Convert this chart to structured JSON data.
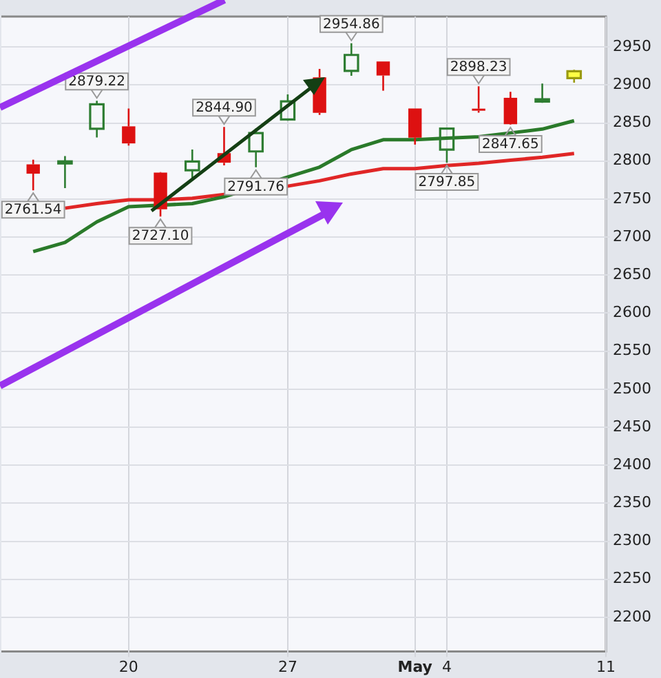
{
  "chart_data": {
    "type": "candlestick",
    "categories": [
      null,
      null,
      null,
      null,
      "20",
      null,
      null,
      null,
      null,
      "27",
      null,
      null,
      null,
      "May",
      "4",
      null,
      null,
      null,
      null,
      "11"
    ],
    "ohlc": [
      null,
      [
        2795.64,
        2801.88,
        2761.54,
        2783.36
      ],
      [
        2799.34,
        2806.51,
        2764.32,
        2799.55
      ],
      [
        2842.43,
        2879.22,
        2830.88,
        2874.56
      ],
      [
        2845.62,
        2868.98,
        2820.43,
        2823.16
      ],
      [
        2784.81,
        2785.54,
        2727.1,
        2736.56
      ],
      [
        2787.89,
        2815.1,
        2775.95,
        2799.31
      ],
      [
        2810.42,
        2844.9,
        2794.26,
        2797.8
      ],
      [
        2812.64,
        2842.71,
        2791.76,
        2836.74
      ],
      [
        2854.65,
        2887.72,
        2852.89,
        2878.48
      ],
      [
        2909.96,
        2921.15,
        2860.71,
        2863.39
      ],
      [
        2918.46,
        2954.86,
        2912.16,
        2939.51
      ],
      [
        2930.91,
        2930.91,
        2892.47,
        2912.43
      ],
      [
        2869.09,
        2869.09,
        2821.61,
        2830.71
      ],
      [
        2815.01,
        2844.24,
        2797.85,
        2842.74
      ],
      [
        2868.88,
        2898.23,
        2863.55,
        2868.44
      ],
      [
        2883.14,
        2891.11,
        2847.65,
        2848.42
      ],
      [
        2878.26,
        2901.92,
        2876.48,
        2881.19
      ],
      [
        2909,
        2920,
        2903,
        2918
      ],
      null
    ],
    "colors": [
      null,
      "#dd1111",
      "#2e7d32",
      "#2e7d32",
      "#dd1111",
      "#dd1111",
      "#2e7d32",
      "#dd1111",
      "#2e7d32",
      "#2e7d32",
      "#dd1111",
      "#2e7d32",
      "#dd1111",
      "#dd1111",
      "#2e7d32",
      "#dd1111",
      "#dd1111",
      "#2e7d32",
      "#ffff44",
      null
    ],
    "series": [
      {
        "type": "line",
        "color": "#2a7a2a",
        "values": [
          null,
          2681,
          2693,
          2720,
          2740,
          null,
          2744,
          2753,
          null,
          2779,
          2792,
          2815,
          2828,
          2828,
          2830,
          2832,
          2837,
          2842,
          2853,
          null
        ]
      },
      {
        "type": "line",
        "color": "#e02626",
        "values": [
          null,
          null,
          2738,
          2744,
          2749,
          2749,
          2751,
          2756,
          null,
          2767,
          2774,
          2783,
          2790,
          2790,
          2794,
          2797,
          2801,
          2805,
          2810,
          null
        ]
      }
    ],
    "annotations": [
      "2761.54",
      "2879.22",
      "2727.10",
      "2844.90",
      "2791.76",
      "2954.86",
      "2797.85",
      "2898.23",
      "2847.65"
    ],
    "ylim": [
      2155,
      2990
    ],
    "yticks": [
      2200,
      2250,
      2300,
      2350,
      2400,
      2450,
      2500,
      2550,
      2600,
      2650,
      2700,
      2750,
      2800,
      2850,
      2900,
      2950
    ],
    "grid": true
  }
}
